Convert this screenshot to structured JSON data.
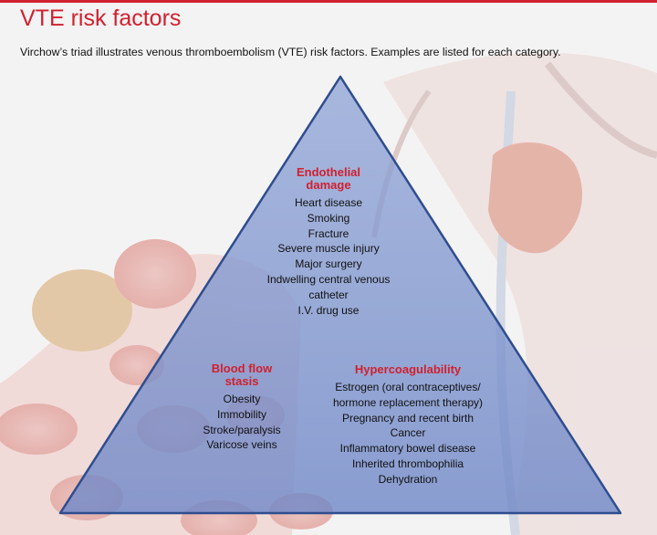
{
  "header": {
    "title": "VTE risk factors",
    "subtitle": "Virchow’s triad illustrates venous thromboembolism (VTE) risk factors. Examples are listed for each category."
  },
  "triad": {
    "sections": [
      {
        "title": "Endothelial damage",
        "items": [
          "Heart disease",
          "Smoking",
          "Fracture",
          "Severe muscle injury",
          "Major surgery",
          "Indwelling central venous catheter",
          "I.V. drug use"
        ]
      },
      {
        "title": "Blood flow stasis",
        "items": [
          "Obesity",
          "Immobility",
          "Stroke/paralysis",
          "Varicose veins"
        ]
      },
      {
        "title": "Hypercoagulability",
        "items": [
          "Estrogen (oral contraceptives/ hormone replacement therapy)",
          "Pregnancy and recent birth",
          "Cancer",
          "Inflammatory bowel disease",
          "Inherited thrombophilia",
          "Dehydration"
        ]
      }
    ]
  }
}
